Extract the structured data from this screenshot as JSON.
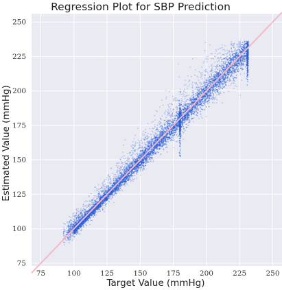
{
  "chart_data": {
    "type": "scatter",
    "title": "Regression Plot for SBP Prediction",
    "xlabel": "Target Value (mmHg)",
    "ylabel": "Estimated Value (mmHg)",
    "xlim": [
      68,
      257
    ],
    "ylim": [
      73,
      256
    ],
    "xticks": [
      75,
      100,
      125,
      150,
      175,
      200,
      225,
      250
    ],
    "yticks": [
      75,
      100,
      125,
      150,
      175,
      200,
      225,
      250
    ],
    "grid": true,
    "background_color": "#eaeaf2",
    "point_color": "#2b5fd9",
    "reference_line": {
      "label": "",
      "slope": 1,
      "intercept": 0,
      "color": "#f4b8c8"
    },
    "points_summary": {
      "x_range": [
        92,
        232
      ],
      "y_range": [
        88,
        236
      ],
      "relation": "y approximately equals x with spread widening above the identity line",
      "dense_core": [
        [
          100,
          104
        ],
        [
          115,
          118
        ],
        [
          125,
          127
        ],
        [
          150,
          150
        ],
        [
          175,
          175
        ],
        [
          200,
          200
        ],
        [
          225,
          224
        ]
      ],
      "vertical_streaks_x": [
        180,
        231
      ]
    }
  }
}
